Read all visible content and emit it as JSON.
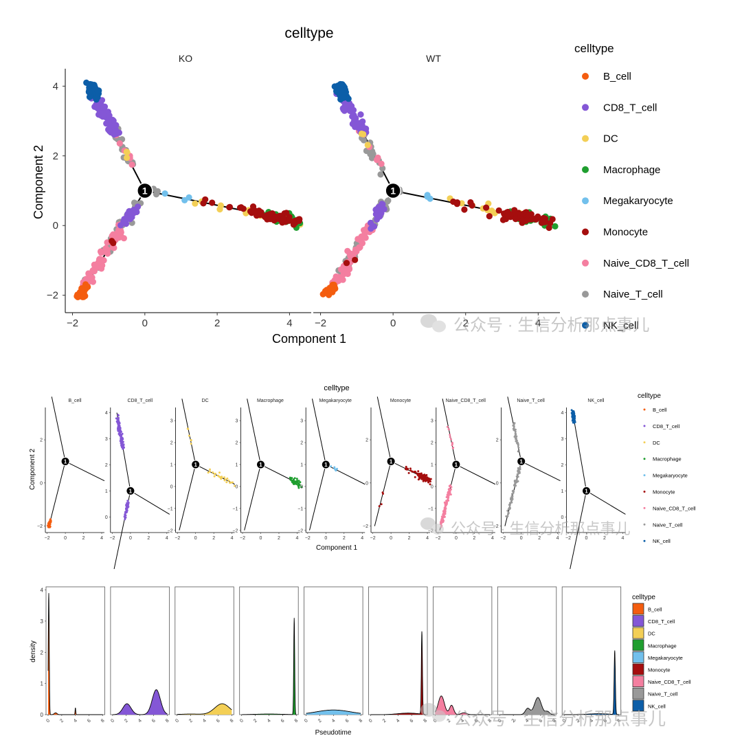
{
  "celltypes": [
    "B_cell",
    "CD8_T_cell",
    "DC",
    "Macrophage",
    "Megakaryocyte",
    "Monocyte",
    "Naive_CD8_T_cell",
    "Naive_T_cell",
    "NK_cell"
  ],
  "colors": {
    "B_cell": "#f45d0f",
    "CD8_T_cell": "#8457d6",
    "DC": "#f3cf56",
    "Macrophage": "#1f9e2f",
    "Megakaryocyte": "#72c0ec",
    "Monocyte": "#a50e0e",
    "Naive_CD8_T_cell": "#f47fa0",
    "Naive_T_cell": "#999999",
    "NK_cell": "#0c5ea8"
  },
  "branch_label": "1",
  "watermark": "公众号 · 生信分析那点事儿",
  "chart_data": [
    {
      "type": "scatter",
      "title": "celltype",
      "facets": [
        "KO",
        "WT"
      ],
      "xlabel": "Component 1",
      "ylabel": "Component 2",
      "xticks": [
        -2,
        0,
        2,
        4
      ],
      "yticks": [
        -2,
        0,
        2,
        4
      ],
      "xlim": [
        -2.2,
        4.6
      ],
      "ylim": [
        -2.5,
        4.5
      ],
      "legend_title": "celltype",
      "legend_position": "right",
      "trajectory": {
        "branch_point": [
          0,
          1
        ],
        "tip_top": [
          -1.5,
          4.0
        ],
        "tip_bottom": [
          -1.8,
          -2.0
        ],
        "tip_right": [
          4.3,
          0.1
        ]
      }
    },
    {
      "type": "scatter",
      "title": "celltype",
      "facets": [
        "B_cell",
        "CD8_T_cell",
        "DC",
        "Macrophage",
        "Megakaryocyte",
        "Monocyte",
        "Naive_CD8_T_cell",
        "Naive_T_cell",
        "NK_cell"
      ],
      "xlabel": "Component 1",
      "ylabel": "Component 2",
      "xticks": [
        -2,
        0,
        2,
        4
      ],
      "ytick_sets": [
        [
          -2,
          0,
          2
        ],
        [
          0,
          1,
          2,
          3,
          4
        ],
        [
          -2,
          -1,
          0,
          1,
          2,
          3
        ],
        [
          -2,
          -1,
          0,
          1,
          2,
          3
        ],
        [
          -2,
          -1,
          0,
          1,
          2,
          3
        ],
        [
          -2,
          0,
          2
        ],
        [
          -2,
          -1,
          0,
          1,
          2,
          3
        ],
        [
          -2,
          0,
          2
        ],
        [
          0,
          1,
          2,
          3,
          4
        ]
      ],
      "legend_title": "celltype",
      "legend_position": "right"
    },
    {
      "type": "area",
      "facets": [
        "B_cell",
        "CD8_T_cell",
        "DC",
        "Macrophage",
        "Megakaryocyte",
        "Monocyte",
        "Naive_CD8_T_cell",
        "Naive_T_cell",
        "NK_cell"
      ],
      "xlabel": "Pseudotime",
      "ylabel": "density",
      "xticks": [
        0,
        2,
        4,
        6,
        8
      ],
      "yticks": [
        0,
        1,
        2,
        3,
        4
      ],
      "xlim": [
        -0.3,
        8.3
      ],
      "ylim": [
        0,
        4.1
      ],
      "peaks": [
        [
          [
            0.1,
            3.9,
            0.07
          ],
          [
            1.1,
            0.06,
            0.2
          ],
          [
            4.0,
            0.22,
            0.05
          ]
        ],
        [
          [
            2.1,
            0.35,
            0.6
          ],
          [
            6.4,
            0.8,
            0.6
          ]
        ],
        [
          [
            6.6,
            0.35,
            1.1
          ],
          [
            2.0,
            0.02,
            1.5
          ]
        ],
        [
          [
            7.7,
            3.1,
            0.07
          ],
          [
            4.0,
            0.02,
            2.0
          ]
        ],
        [
          [
            4.0,
            0.15,
            2.5
          ]
        ],
        [
          [
            7.5,
            2.65,
            0.08
          ],
          [
            5.5,
            0.05,
            1.5
          ]
        ],
        [
          [
            0.9,
            0.6,
            0.45
          ],
          [
            2.4,
            0.3,
            0.3
          ],
          [
            4.2,
            0.06,
            0.4
          ]
        ],
        [
          [
            5.6,
            0.55,
            0.5
          ],
          [
            4.1,
            0.2,
            0.35
          ],
          [
            7.0,
            0.1,
            0.3
          ]
        ],
        [
          [
            7.4,
            2.05,
            0.09
          ],
          [
            5.0,
            0.03,
            1.5
          ]
        ]
      ],
      "legend_title": "celltype",
      "legend_position": "right"
    }
  ]
}
